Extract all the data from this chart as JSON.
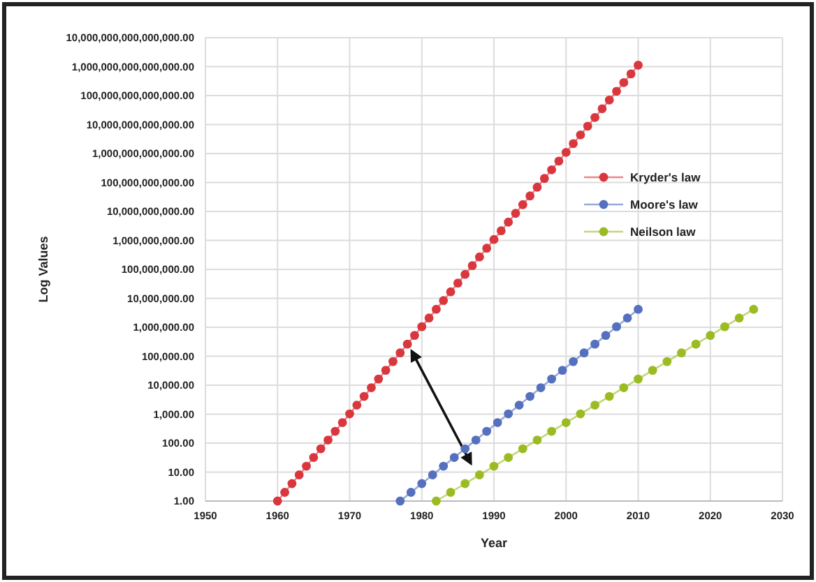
{
  "chart_data": {
    "type": "line",
    "xlabel": "Year",
    "ylabel": "Log Values",
    "log": "y",
    "grid": true,
    "legend": "top right",
    "marker": "circle",
    "line_style": "solid",
    "xlim": [
      1950,
      2030
    ],
    "xticks": [
      1950,
      1960,
      1970,
      1980,
      1990,
      2000,
      2010,
      2020,
      2030
    ],
    "ylim": [
      1,
      10000000000000000
    ],
    "yticks": [
      {
        "value": 1,
        "label": "1.00"
      },
      {
        "value": 10,
        "label": "10.00"
      },
      {
        "value": 100,
        "label": "100.00"
      },
      {
        "value": 1000,
        "label": "1,000.00"
      },
      {
        "value": 10000,
        "label": "10,000.00"
      },
      {
        "value": 100000,
        "label": "100,000.00"
      },
      {
        "value": 1000000,
        "label": "1,000,000.00"
      },
      {
        "value": 10000000,
        "label": "10,000,000.00"
      },
      {
        "value": 100000000,
        "label": "100,000,000.00"
      },
      {
        "value": 1000000000,
        "label": "1,000,000,000.00"
      },
      {
        "value": 10000000000,
        "label": "10,000,000,000.00"
      },
      {
        "value": 100000000000,
        "label": "100,000,000,000.00"
      },
      {
        "value": 1000000000000,
        "label": "1,000,000,000,000.00"
      },
      {
        "value": 10000000000000,
        "label": "10,000,000,000,000.00"
      },
      {
        "value": 100000000000000,
        "label": "100,000,000,000,000.00"
      },
      {
        "value": 1000000000000000,
        "label": "1,000,000,000,000,000.00"
      },
      {
        "value": 10000000000000000,
        "label": "10,000,000,000,000,000.00"
      }
    ],
    "series": [
      {
        "name": "Kryder's law",
        "color": "#d9363e",
        "x": [
          1960,
          1961,
          1962,
          1963,
          1964,
          1965,
          1966,
          1967,
          1968,
          1969,
          1970,
          1971,
          1972,
          1973,
          1974,
          1975,
          1976,
          1977,
          1978,
          1979,
          1980,
          1981,
          1982,
          1983,
          1984,
          1985,
          1986,
          1987,
          1988,
          1989,
          1990,
          1991,
          1992,
          1993,
          1994,
          1995,
          1996,
          1997,
          1998,
          1999,
          2000,
          2001,
          2002,
          2003,
          2004,
          2005,
          2006,
          2007,
          2008,
          2009,
          2010
        ],
        "values": [
          1,
          2,
          4,
          8,
          16,
          32,
          64,
          128,
          256,
          512,
          1024,
          2048,
          4096,
          8192,
          16384,
          32768,
          65536,
          131072,
          262144,
          524288,
          1048576,
          2097152,
          4194304,
          8388608,
          16777216,
          33554432,
          67108864,
          134217728,
          268435456,
          536870912,
          1073741824,
          2147483648,
          4294967296,
          8589934592,
          17179869184,
          34359738368,
          68719476736,
          137438953472,
          274877906944,
          549755813888,
          1099511627776,
          2199023255552,
          4398046511104,
          8796093022208,
          17592186044416,
          35184372088832,
          70368744177664,
          140737488355328,
          281474976710656,
          562949953421312,
          1125899906842624
        ]
      },
      {
        "name": "Moore's law",
        "color": "#5470be",
        "x": [
          1977,
          1978.5,
          1980,
          1981.5,
          1983,
          1984.5,
          1986,
          1987.5,
          1989,
          1990.5,
          1992,
          1993.5,
          1995,
          1996.5,
          1998,
          1999.5,
          2001,
          2002.5,
          2004,
          2005.5,
          2007,
          2008.5,
          2010
        ],
        "values": [
          1,
          2,
          4,
          8,
          16,
          32,
          64,
          128,
          256,
          512,
          1024,
          2048,
          4096,
          8192,
          16384,
          32768,
          65536,
          131072,
          262144,
          524288,
          1048576,
          2097152,
          4194304
        ]
      },
      {
        "name": "Neilson law",
        "color": "#9bbb22",
        "x": [
          1982,
          1984,
          1986,
          1988,
          1990,
          1992,
          1994,
          1996,
          1998,
          2000,
          2002,
          2004,
          2006,
          2008,
          2010,
          2012,
          2014,
          2016,
          2018,
          2020,
          2022,
          2024,
          2026
        ],
        "values": [
          1,
          2,
          4,
          8,
          16,
          32,
          64,
          128,
          256,
          512,
          1024,
          2048,
          4096,
          8192,
          16384,
          32768,
          65536,
          131072,
          262144,
          524288,
          1048576,
          2097152,
          4194304
        ]
      }
    ]
  }
}
